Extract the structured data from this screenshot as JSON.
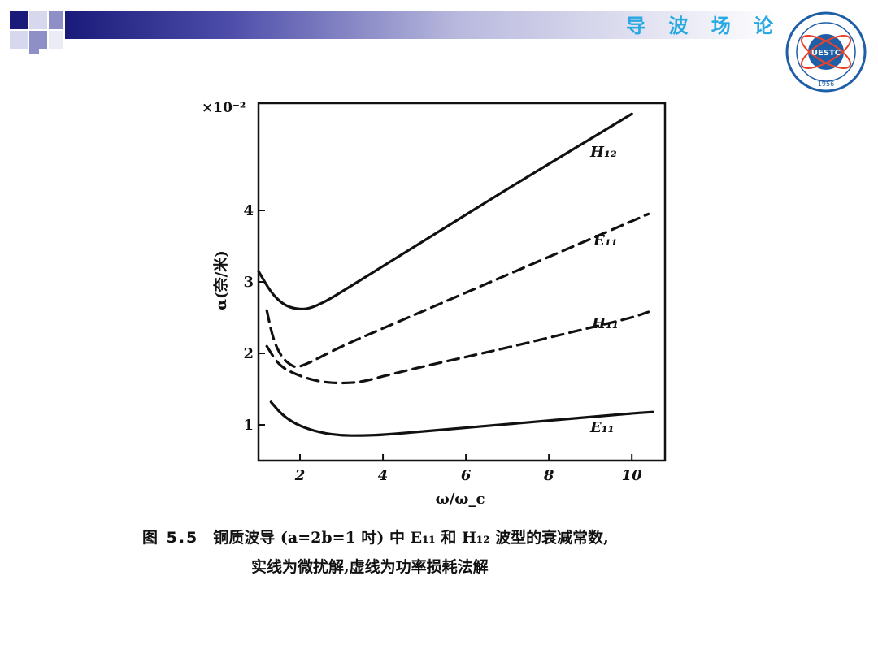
{
  "header": {
    "course_title": "导 波 场 论",
    "accent_color": "#29a9e1",
    "band_color": "#1a1a7a"
  },
  "logo": {
    "center_text": "UESTC",
    "year": "1956",
    "ring_color": "#1f5fa8",
    "icon": "university-seal-icon"
  },
  "chart_data": {
    "type": "line",
    "ylabel": "α(奈/米)",
    "xlabel": "ω/ω_c",
    "y_multiplier": "×10⁻²",
    "xlim": [
      1.0,
      10.8
    ],
    "ylim": [
      0.5,
      5.5
    ],
    "xticks": [
      "2",
      "4",
      "6",
      "8",
      "10"
    ],
    "yticks": [
      "1",
      "2",
      "3",
      "4"
    ],
    "grid": false,
    "series": [
      {
        "name": "H₁₂",
        "style": "solid",
        "x": [
          1.0,
          1.3,
          1.6,
          1.9,
          2.2,
          2.6,
          3.0,
          4.0,
          5.0,
          6.0,
          7.0,
          8.0,
          9.0,
          10.0
        ],
        "y": [
          3.15,
          2.85,
          2.68,
          2.62,
          2.62,
          2.72,
          2.86,
          3.22,
          3.58,
          3.94,
          4.3,
          4.65,
          5.0,
          5.35
        ]
      },
      {
        "name": "E₁₁",
        "style": "dashed",
        "x": [
          1.2,
          1.35,
          1.55,
          1.8,
          2.0,
          3.0,
          4.0,
          5.0,
          6.0,
          7.0,
          8.0,
          9.0,
          10.0,
          10.4
        ],
        "y": [
          2.6,
          2.2,
          1.95,
          1.82,
          1.8,
          2.1,
          2.35,
          2.6,
          2.85,
          3.1,
          3.35,
          3.6,
          3.85,
          3.95
        ]
      },
      {
        "name": "H₁₁",
        "style": "dashed",
        "x": [
          1.2,
          1.5,
          2.0,
          2.5,
          3.0,
          3.5,
          4.0,
          5.0,
          6.0,
          7.0,
          8.0,
          9.0,
          10.0,
          10.4
        ],
        "y": [
          2.1,
          1.82,
          1.68,
          1.6,
          1.58,
          1.6,
          1.68,
          1.82,
          1.95,
          2.08,
          2.22,
          2.36,
          2.5,
          2.58
        ]
      },
      {
        "name": "E₁₁",
        "style": "solid",
        "x": [
          1.3,
          1.6,
          2.0,
          2.5,
          3.0,
          3.5,
          4.0,
          5.0,
          6.0,
          7.0,
          8.0,
          9.0,
          10.0,
          10.5
        ],
        "y": [
          1.32,
          1.12,
          0.98,
          0.89,
          0.85,
          0.85,
          0.86,
          0.91,
          0.96,
          1.01,
          1.06,
          1.11,
          1.16,
          1.18
        ]
      }
    ]
  },
  "caption": {
    "line1_num": "图 5.5",
    "line1_text": "铜质波导 (a=2b=1 吋) 中 E₁₁ 和 H₁₂ 波型的衰减常数,",
    "line2": "实线为微扰解,虚线为功率损耗法解"
  }
}
